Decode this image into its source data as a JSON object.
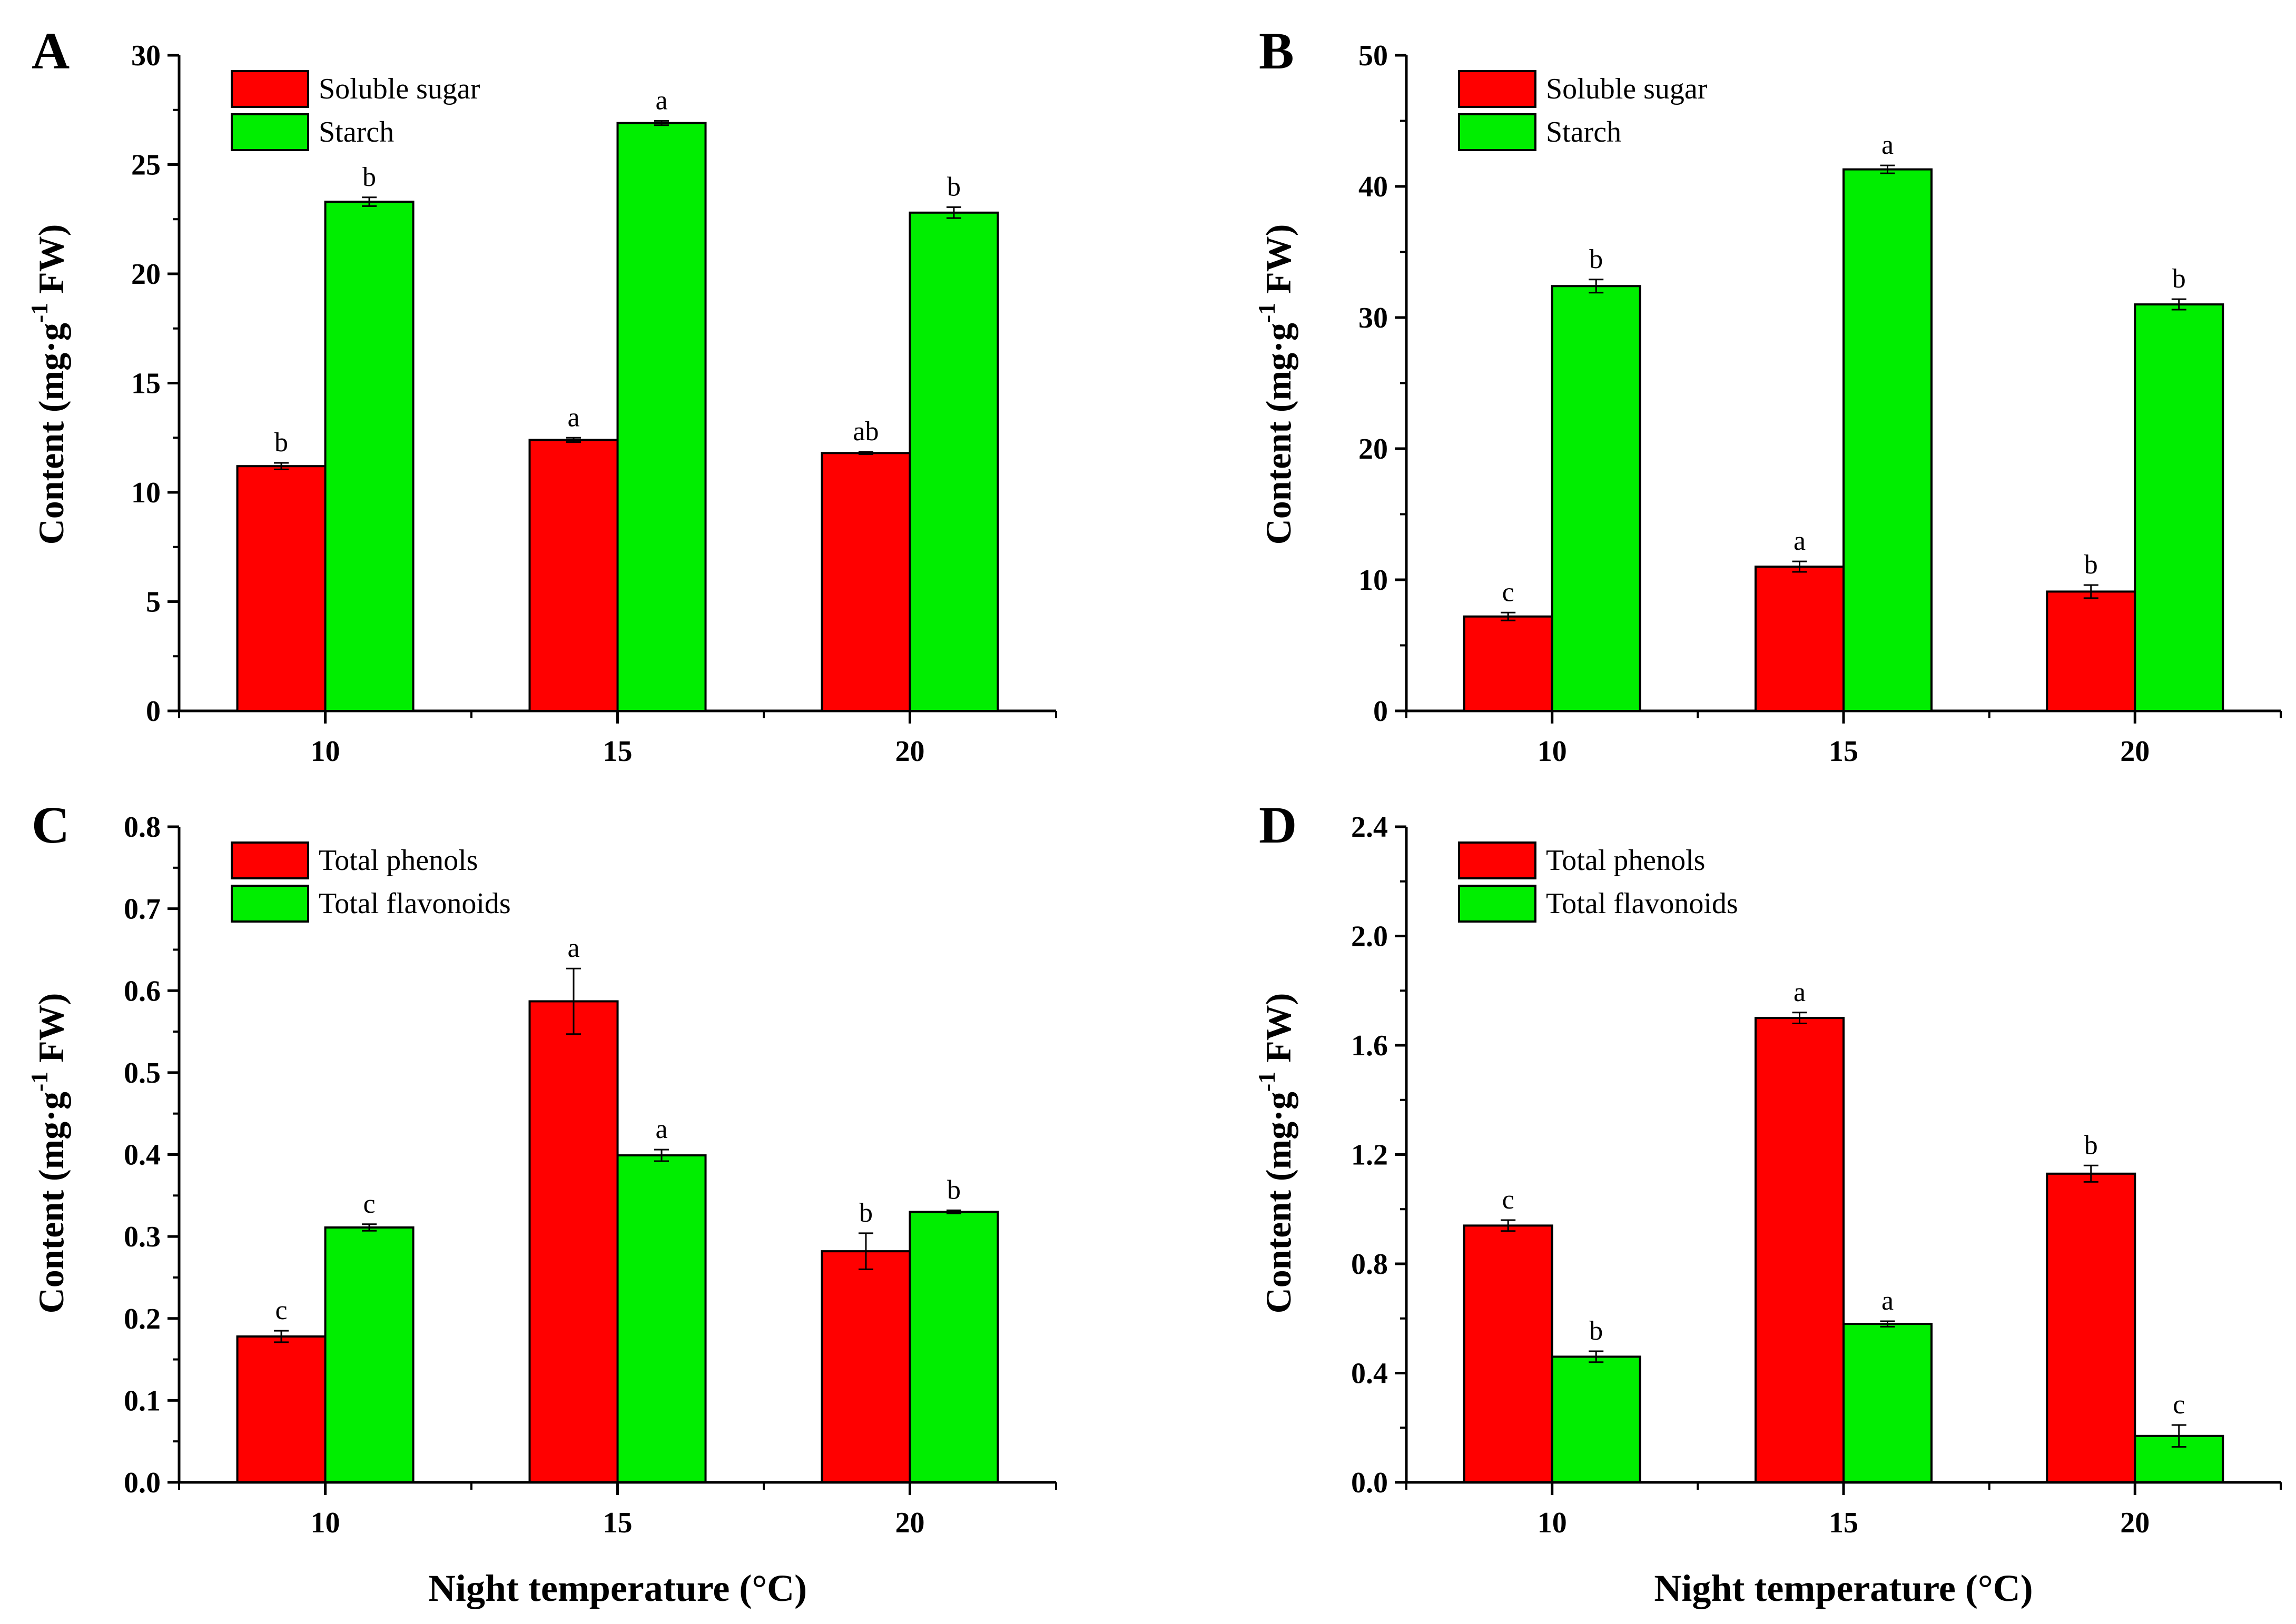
{
  "figure": {
    "x_axis_title": "Night temperature (°C)",
    "y_axis_title_main": "Content (mg·g",
    "y_axis_title_sup": "-1",
    "y_axis_title_end": " FW)",
    "colors": {
      "series1": "#ff0000",
      "series2": "#00ee00",
      "axis": "#000000",
      "background": "#ffffff"
    }
  },
  "chart_data": [
    {
      "panel": "A",
      "type": "bar",
      "categories": [
        "10",
        "15",
        "20"
      ],
      "ylim": [
        0,
        30
      ],
      "yticks": [
        0,
        5,
        10,
        15,
        20,
        25,
        30
      ],
      "ytick_labels": [
        "0",
        "5",
        "10",
        "15",
        "20",
        "25",
        "30"
      ],
      "xlabel": "",
      "ylabel": "Content (mg·g-1 FW)",
      "legend_position": "top-left",
      "series": [
        {
          "name": "Soluble sugar",
          "color": "#ff0000",
          "values": [
            11.2,
            12.4,
            11.8
          ],
          "errors": [
            0.15,
            0.1,
            0.05
          ],
          "letters": [
            "b",
            "a",
            "ab"
          ]
        },
        {
          "name": "Starch",
          "color": "#00ee00",
          "values": [
            23.3,
            26.9,
            22.8
          ],
          "errors": [
            0.2,
            0.1,
            0.25
          ],
          "letters": [
            "b",
            "a",
            "b"
          ]
        }
      ]
    },
    {
      "panel": "B",
      "type": "bar",
      "categories": [
        "10",
        "15",
        "20"
      ],
      "ylim": [
        0,
        50
      ],
      "yticks": [
        0,
        10,
        20,
        30,
        40,
        50
      ],
      "ytick_labels": [
        "0",
        "10",
        "20",
        "30",
        "40",
        "50"
      ],
      "xlabel": "",
      "ylabel": "Content (mg·g-1 FW)",
      "legend_position": "top-left",
      "series": [
        {
          "name": "Soluble sugar",
          "color": "#ff0000",
          "values": [
            7.2,
            11.0,
            9.1
          ],
          "errors": [
            0.3,
            0.4,
            0.5
          ],
          "letters": [
            "c",
            "a",
            "b"
          ]
        },
        {
          "name": "Starch",
          "color": "#00ee00",
          "values": [
            32.4,
            41.3,
            31.0
          ],
          "errors": [
            0.5,
            0.3,
            0.4
          ],
          "letters": [
            "b",
            "a",
            "b"
          ]
        }
      ]
    },
    {
      "panel": "C",
      "type": "bar",
      "categories": [
        "10",
        "15",
        "20"
      ],
      "ylim": [
        0,
        0.8
      ],
      "yticks": [
        0,
        0.1,
        0.2,
        0.3,
        0.4,
        0.5,
        0.6,
        0.7,
        0.8
      ],
      "ytick_labels": [
        "0.0",
        "0.1",
        "0.2",
        "0.3",
        "0.4",
        "0.5",
        "0.6",
        "0.7",
        "0.8"
      ],
      "xlabel": "Night temperature (°C)",
      "ylabel": "Content (mg·g-1 FW)",
      "legend_position": "top-left",
      "series": [
        {
          "name": "Total phenols",
          "color": "#ff0000",
          "values": [
            0.178,
            0.587,
            0.282
          ],
          "errors": [
            0.007,
            0.04,
            0.022
          ],
          "letters": [
            "c",
            "a",
            "b"
          ]
        },
        {
          "name": "Total flavonoids",
          "color": "#00ee00",
          "values": [
            0.311,
            0.399,
            0.33
          ],
          "errors": [
            0.004,
            0.007,
            0.002
          ],
          "letters": [
            "c",
            "a",
            "b"
          ]
        }
      ]
    },
    {
      "panel": "D",
      "type": "bar",
      "categories": [
        "10",
        "15",
        "20"
      ],
      "ylim": [
        0,
        2.4
      ],
      "yticks": [
        0,
        0.4,
        0.8,
        1.2,
        1.6,
        2.0,
        2.4
      ],
      "ytick_labels": [
        "0.0",
        "0.4",
        "0.8",
        "1.2",
        "1.6",
        "2.0",
        "2.4"
      ],
      "xlabel": "Night temperature (°C)",
      "ylabel": "Content (mg·g-1 FW)",
      "legend_position": "top-left",
      "series": [
        {
          "name": "Total phenols",
          "color": "#ff0000",
          "values": [
            0.94,
            1.7,
            1.13
          ],
          "errors": [
            0.02,
            0.02,
            0.03
          ],
          "letters": [
            "c",
            "a",
            "b"
          ]
        },
        {
          "name": "Total flavonoids",
          "color": "#00ee00",
          "values": [
            0.46,
            0.58,
            0.17
          ],
          "errors": [
            0.02,
            0.01,
            0.04
          ],
          "letters": [
            "b",
            "a",
            "c"
          ]
        }
      ]
    }
  ]
}
